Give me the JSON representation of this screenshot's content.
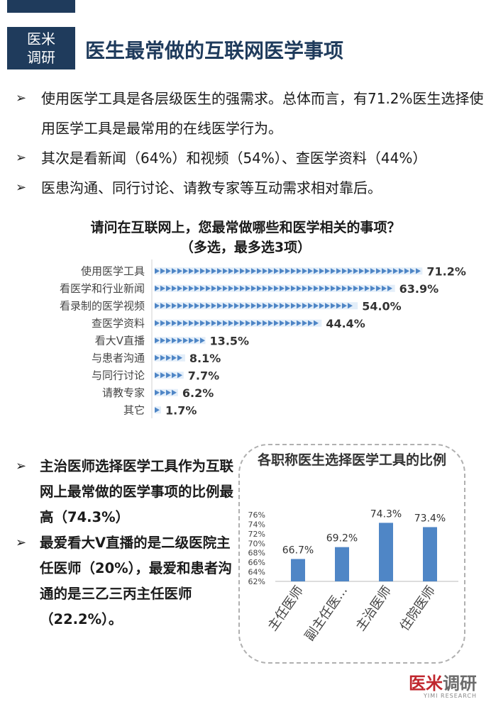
{
  "header": {
    "logo_line1": "医米",
    "logo_line2": "调研",
    "title": "医生最常做的互联网医学事项"
  },
  "bullets": [
    "使用医学工具是各层级医生的强需求。总体而言，有71.2%医生选择使用医学工具是最常用的在线医学行为。",
    "其次是看新闻（64%）和视频（54%）、查医学资料（44%）",
    "医患沟通、同行讨论、请教专家等互动需求相对靠后。"
  ],
  "lower_bullets": [
    "主治医师选择医学工具作为互联网上最常做的医学事项的比例最高（74.3%）",
    "最爱看大V直播的是二级医院主任医师（20%），最爱和患者沟通的是三乙三丙主任医师（22.2%）。"
  ],
  "colors": {
    "navy": "#1f3b5c",
    "bar": "#4f86c6",
    "brand_red": "#c0262d"
  },
  "chart_data": [
    {
      "type": "bar",
      "orientation": "horizontal",
      "title": "请问在互联网上，您最常做哪些和医学相关的事项？",
      "subtitle": "（多选，最多选3项）",
      "categories": [
        "使用医学工具",
        "看医学和行业新闻",
        "看录制的医学视频",
        "查医学资料",
        "看大V直播",
        "与患者沟通",
        "与同行讨论",
        "请教专家",
        "其它"
      ],
      "values": [
        71.2,
        63.9,
        54.0,
        44.4,
        13.5,
        8.1,
        7.7,
        6.2,
        1.7
      ],
      "value_labels": [
        "71.2%",
        "63.9%",
        "54.0%",
        "44.4%",
        "13.5%",
        "8.1%",
        "7.7%",
        "6.2%",
        "1.7%"
      ],
      "xlim": [
        0,
        100
      ],
      "grid": false,
      "legend": "none"
    },
    {
      "type": "bar",
      "orientation": "vertical",
      "title": "各职称医生选择医学工具的比例",
      "categories": [
        "主任医师",
        "副主任医...",
        "主治医师",
        "住院医师"
      ],
      "values": [
        66.7,
        69.2,
        74.3,
        73.4
      ],
      "value_labels": [
        "66.7%",
        "69.2%",
        "74.3%",
        "73.4%"
      ],
      "yticks": [
        "76%",
        "74%",
        "72%",
        "70%",
        "68%",
        "66%",
        "64%",
        "62%"
      ],
      "ylim": [
        62,
        76
      ],
      "grid": false,
      "legend": "none"
    }
  ],
  "brand": {
    "name_a": "医米",
    "name_b": "调研",
    "sub": "YIMI RESEARCH"
  }
}
